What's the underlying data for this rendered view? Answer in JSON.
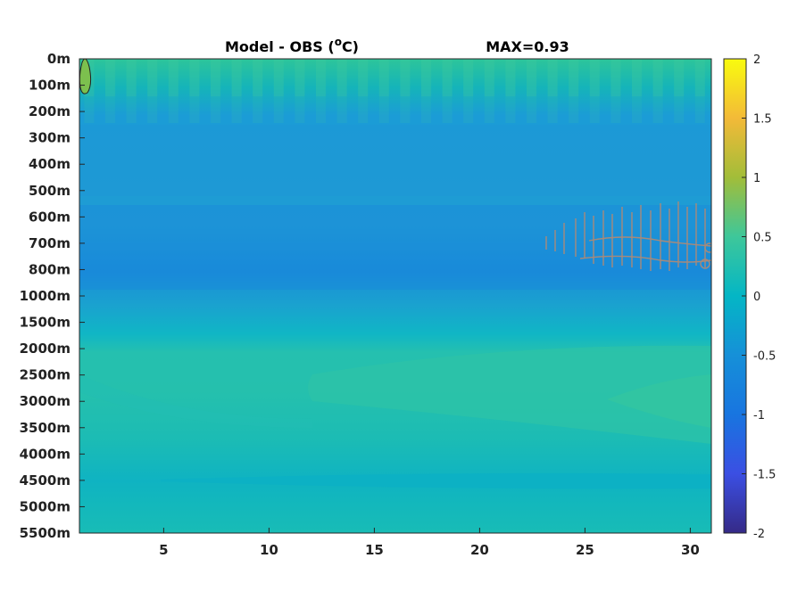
{
  "chart_data": {
    "type": "heatmap",
    "title": "Model - OBS (°C)",
    "title_prefix": "Model - OBS (",
    "title_degree": "o",
    "title_unit": "C)",
    "max_label": "MAX=0.93",
    "max_value": 0.93,
    "xlabel": "",
    "ylabel": "",
    "x_range": [
      1,
      31
    ],
    "x_ticks": [
      5,
      10,
      15,
      20,
      25,
      30
    ],
    "x_tick_labels": [
      "5",
      "10",
      "15",
      "20",
      "25",
      "30"
    ],
    "y_tick_labels": [
      "0m",
      "100m",
      "200m",
      "300m",
      "400m",
      "500m",
      "600m",
      "700m",
      "800m",
      "1000m",
      "1500m",
      "2000m",
      "2500m",
      "3000m",
      "3500m",
      "4000m",
      "4500m",
      "5000m",
      "5500m"
    ],
    "y_axis_direction": "depth increasing downward",
    "colorbar": {
      "range": [
        -2,
        2
      ],
      "ticks": [
        2,
        1.5,
        1,
        0.5,
        0,
        -0.5,
        -1,
        -1.5,
        -2
      ],
      "tick_labels": [
        "2",
        "1.5",
        "1",
        "0.5",
        "0",
        "-0.5",
        "-1",
        "-1.5",
        "-2"
      ],
      "colormap": "parula"
    },
    "field_description_values": {
      "surface_0_100m": 0.25,
      "upper_100_600m": -0.3,
      "mid_600_900m": -0.4,
      "1000_1500m": -0.1,
      "deep_2000_3500m": 0.15,
      "abyss_4000_5500m": 0.05
    },
    "contour_highlights": [
      {
        "region": "x~1-1.5, 0-100m",
        "value": 0.5
      },
      {
        "region": "x~23-31, 600-800m",
        "value": -0.5
      }
    ]
  }
}
